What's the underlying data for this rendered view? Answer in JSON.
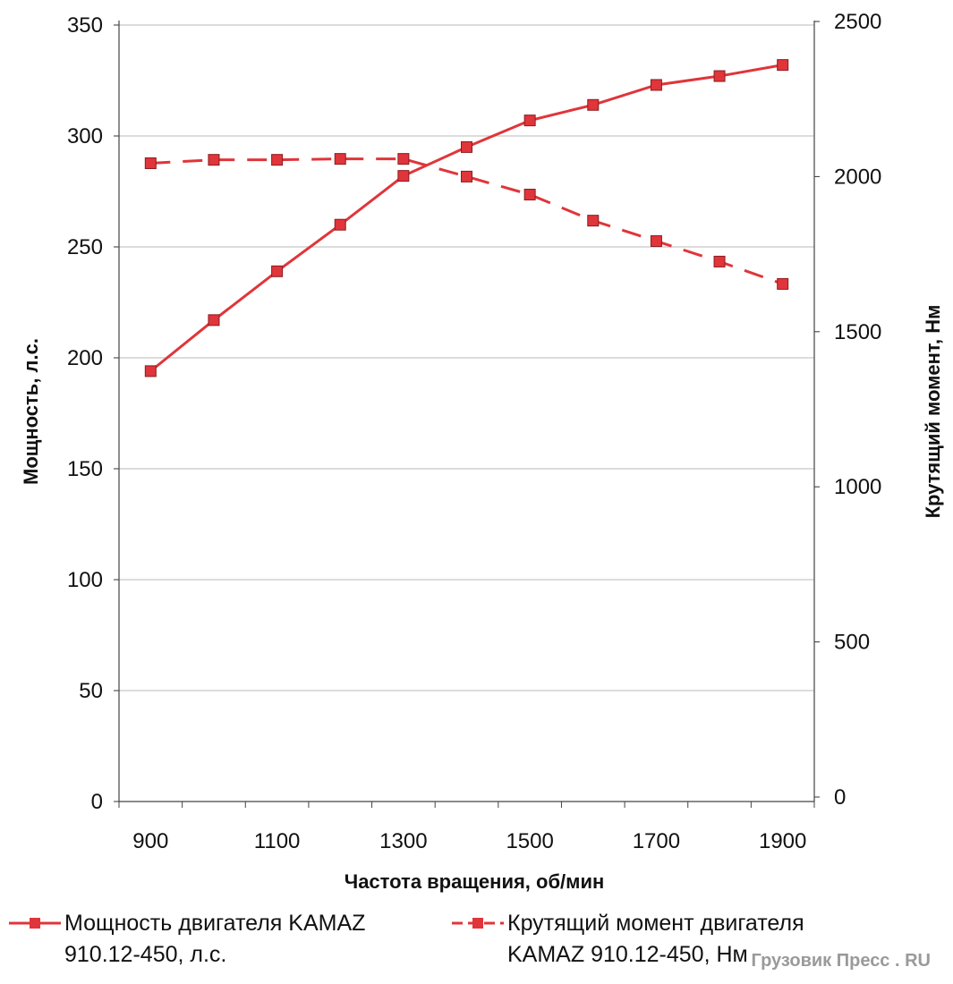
{
  "chart_data": {
    "type": "line",
    "title": "",
    "xlabel": "Частота вращения, об/мин",
    "ylabel": "Мощность, л.с.",
    "y2label": "Крутящий момент, Нм",
    "x": [
      900,
      1000,
      1100,
      1200,
      1300,
      1400,
      1500,
      1600,
      1700,
      1800,
      1900
    ],
    "x_tick_labels": [
      "900",
      "1100",
      "1300",
      "1500",
      "1700",
      "1900"
    ],
    "ylim": [
      0,
      350
    ],
    "y_ticks": [
      "0",
      "50",
      "100",
      "150",
      "200",
      "250",
      "300",
      "350"
    ],
    "y2lim": [
      0,
      2500
    ],
    "y2_ticks": [
      "0",
      "500",
      "1000",
      "1500",
      "2000",
      "2500"
    ],
    "grid": true,
    "legend_placement": "bottom",
    "series": [
      {
        "name": "Мощность двигателя KAMAZ 910.12-450, л.с.",
        "legend_lines": [
          "Мощность двигателя KAMAZ",
          "910.12-450, л.с."
        ],
        "axis": "left",
        "style": "solid",
        "color": "#e0353a",
        "values": [
          194,
          217,
          239,
          260,
          282,
          295,
          307,
          314,
          323,
          327,
          332
        ]
      },
      {
        "name": "Крутящий момент двигателя KAMAZ 910.12-450, Нм",
        "legend_lines": [
          "Крутящий момент двигателя",
          "KAMAZ 910.12-450, Нм"
        ],
        "axis": "right",
        "style": "dashed",
        "color": "#e0353a",
        "values": [
          2043,
          2054,
          2054,
          2057,
          2057,
          2000,
          1942,
          1858,
          1792,
          1726,
          1654
        ]
      }
    ]
  },
  "watermark": "Грузовик Пресс . RU"
}
